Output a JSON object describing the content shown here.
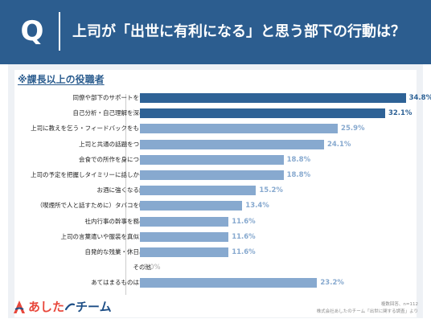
{
  "header": {
    "q_label": "Q",
    "title": "上司が「出世に有利になる」と思う部下の行動は？"
  },
  "subtitle": "※課長以上の役職者",
  "notes": {
    "sample": "複数回答、n=112",
    "source": "株式会社あしたのチーム「出世に関する調査」より"
  },
  "logo": {
    "part1": "あした",
    "part2": "チーム"
  },
  "colors": {
    "header": "#2c5d8f",
    "bar_top": "#2e6296",
    "bar_rest": "#87a9cf",
    "logo_red": "#e8473b",
    "logo_blue": "#1d4e86"
  },
  "chart_data": {
    "type": "bar",
    "orientation": "horizontal",
    "unit": "%",
    "xlim": [
      0,
      40
    ],
    "grid": false,
    "categories": [
      "同僚や部下のサポートをする",
      "自己分析・自己理解を深める",
      "上司に教えを乞う・フィードバックをもらう",
      "上司と共通の話題をつくる",
      "会食での所作を身につける",
      "上司の予定を把握しタイミリーに話しかける",
      "お酒に強くなる練習",
      "（喫煙所で人と話すために）タバコを吸う",
      "社内行事の幹事を務める",
      "上司の言葉遣いや服装を真似する",
      "自発的な残業・休日出勤",
      "その他",
      "あてはまるものはない"
    ],
    "values": [
      34.8,
      32.1,
      25.9,
      24.1,
      18.8,
      18.8,
      15.2,
      13.4,
      11.6,
      11.6,
      11.6,
      0.0,
      23.2
    ],
    "value_labels": [
      "34.8%",
      "32.1%",
      "25.9%",
      "24.1%",
      "18.8%",
      "18.8%",
      "15.2%",
      "13.4%",
      "11.6%",
      "11.6%",
      "11.6%",
      "0.0%",
      "23.2%"
    ],
    "highlighted_count": 2
  }
}
